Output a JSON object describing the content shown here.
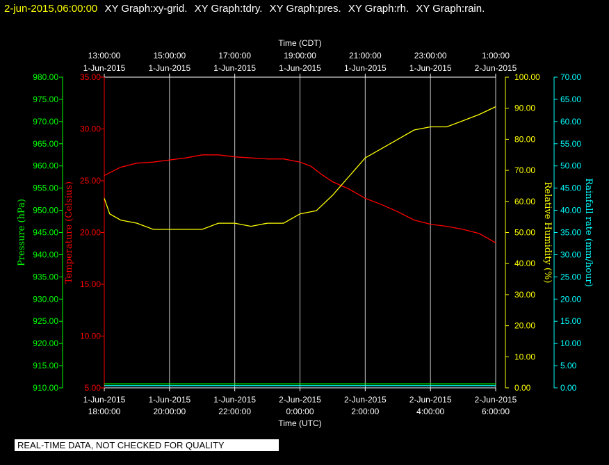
{
  "header": {
    "timestamp": "2-jun-2015,06:00:00",
    "graphs": [
      "XY Graph:xy-grid.",
      "XY Graph:tdry.",
      "XY Graph:pres.",
      "XY Graph:rh.",
      "XY Graph:rain."
    ]
  },
  "footer": {
    "qc_notice": "REAL-TIME DATA, NOT CHECKED FOR QUALITY"
  },
  "colors": {
    "background": "#000000",
    "grid": "#c8c8c8",
    "pressure": "#00ff00",
    "temperature": "#ff0000",
    "humidity": "#ffff00",
    "rain": "#00ffff",
    "frame": "#ffffff"
  },
  "chart_data": {
    "type": "line",
    "grid": true,
    "x_top": {
      "label": "Time (CDT)",
      "ticks": [
        [
          "13:00:00",
          "1-Jun-2015"
        ],
        [
          "15:00:00",
          "1-Jun-2015"
        ],
        [
          "17:00:00",
          "1-Jun-2015"
        ],
        [
          "19:00:00",
          "1-Jun-2015"
        ],
        [
          "21:00:00",
          "1-Jun-2015"
        ],
        [
          "23:00:00",
          "1-Jun-2015"
        ],
        [
          "1:00:00",
          "2-Jun-2015"
        ]
      ]
    },
    "x_bottom": {
      "label": "Time (UTC)",
      "range": [
        "2015-06-01 18:00",
        "2015-06-02 06:00"
      ],
      "ticks": [
        [
          "1-Jun-2015",
          "18:00:00"
        ],
        [
          "1-Jun-2015",
          "20:00:00"
        ],
        [
          "1-Jun-2015",
          "22:00:00"
        ],
        [
          "2-Jun-2015",
          "0:00:00"
        ],
        [
          "2-Jun-2015",
          "2:00:00"
        ],
        [
          "2-Jun-2015",
          "4:00:00"
        ],
        [
          "2-Jun-2015",
          "6:00:00"
        ]
      ]
    },
    "axes": {
      "pressure": {
        "label": "Pressure (hPa)",
        "ylim": [
          910,
          980
        ],
        "ticks": [
          "910.00",
          "915.00",
          "920.00",
          "925.00",
          "930.00",
          "935.00",
          "940.00",
          "945.00",
          "950.00",
          "955.00",
          "960.00",
          "965.00",
          "970.00",
          "975.00",
          "980.00"
        ]
      },
      "temperature": {
        "label": "Temperature (Celsius)",
        "ylim": [
          5,
          35
        ],
        "ticks": [
          "5.00",
          "10.00",
          "15.00",
          "20.00",
          "25.00",
          "30.00",
          "35.00"
        ]
      },
      "humidity": {
        "label": "Relative Humidity (%)",
        "ylim": [
          0,
          100
        ],
        "ticks": [
          "0.00",
          "10.00",
          "20.00",
          "30.00",
          "40.00",
          "50.00",
          "60.00",
          "70.00",
          "80.00",
          "90.00",
          "100.00"
        ]
      },
      "rain": {
        "label": "Rainfall rate (mm/hour)",
        "ylim": [
          0,
          70
        ],
        "ticks": [
          "0.00",
          "5.00",
          "10.00",
          "15.00",
          "20.00",
          "25.00",
          "30.00",
          "35.00",
          "40.00",
          "45.00",
          "50.00",
          "55.00",
          "60.00",
          "65.00",
          "70.00"
        ]
      }
    },
    "series": [
      {
        "name": "Temperature",
        "axis": "temperature",
        "x": [
          "2015-06-01 18:00",
          "2015-06-01 18:15",
          "2015-06-01 18:30",
          "2015-06-01 19:00",
          "2015-06-01 19:30",
          "2015-06-01 20:00",
          "2015-06-01 20:30",
          "2015-06-01 21:00",
          "2015-06-01 21:30",
          "2015-06-01 22:00",
          "2015-06-01 22:30",
          "2015-06-01 23:00",
          "2015-06-01 23:30",
          "2015-06-02 00:00",
          "2015-06-02 00:20",
          "2015-06-02 00:40",
          "2015-06-02 01:00",
          "2015-06-02 01:30",
          "2015-06-02 02:00",
          "2015-06-02 02:30",
          "2015-06-02 03:00",
          "2015-06-02 03:30",
          "2015-06-02 04:00",
          "2015-06-02 04:30",
          "2015-06-02 05:00",
          "2015-06-02 05:30",
          "2015-06-02 06:00"
        ],
        "y": [
          25.5,
          25.9,
          26.3,
          26.7,
          26.8,
          27.0,
          27.2,
          27.5,
          27.5,
          27.3,
          27.2,
          27.1,
          27.1,
          26.8,
          26.4,
          25.6,
          24.9,
          24.2,
          23.3,
          22.7,
          22.0,
          21.2,
          20.8,
          20.6,
          20.3,
          19.9,
          19.0
        ]
      },
      {
        "name": "Relative Humidity",
        "axis": "humidity",
        "x": [
          "2015-06-01 18:00",
          "2015-06-01 18:10",
          "2015-06-01 18:30",
          "2015-06-01 19:00",
          "2015-06-01 19:30",
          "2015-06-01 20:00",
          "2015-06-01 20:30",
          "2015-06-01 21:00",
          "2015-06-01 21:30",
          "2015-06-01 22:00",
          "2015-06-01 22:30",
          "2015-06-01 23:00",
          "2015-06-01 23:30",
          "2015-06-02 00:00",
          "2015-06-02 00:30",
          "2015-06-02 01:00",
          "2015-06-02 01:30",
          "2015-06-02 02:00",
          "2015-06-02 02:30",
          "2015-06-02 03:00",
          "2015-06-02 03:30",
          "2015-06-02 04:00",
          "2015-06-02 04:30",
          "2015-06-02 05:00",
          "2015-06-02 05:30",
          "2015-06-02 06:00"
        ],
        "y": [
          61,
          56,
          54,
          53,
          51,
          51,
          51,
          51,
          53,
          53,
          52,
          53,
          53,
          56,
          57,
          62,
          68,
          74,
          77,
          80,
          83,
          84,
          84,
          86,
          88,
          90.5
        ]
      },
      {
        "name": "Pressure",
        "axis": "pressure",
        "x": [
          "2015-06-01 18:00",
          "2015-06-02 06:00"
        ],
        "y": [
          910.9,
          910.9
        ]
      },
      {
        "name": "Rainfall rate",
        "axis": "rain",
        "x": [
          "2015-06-01 18:00",
          "2015-06-02 06:00"
        ],
        "y": [
          0.5,
          0.5
        ]
      }
    ]
  }
}
